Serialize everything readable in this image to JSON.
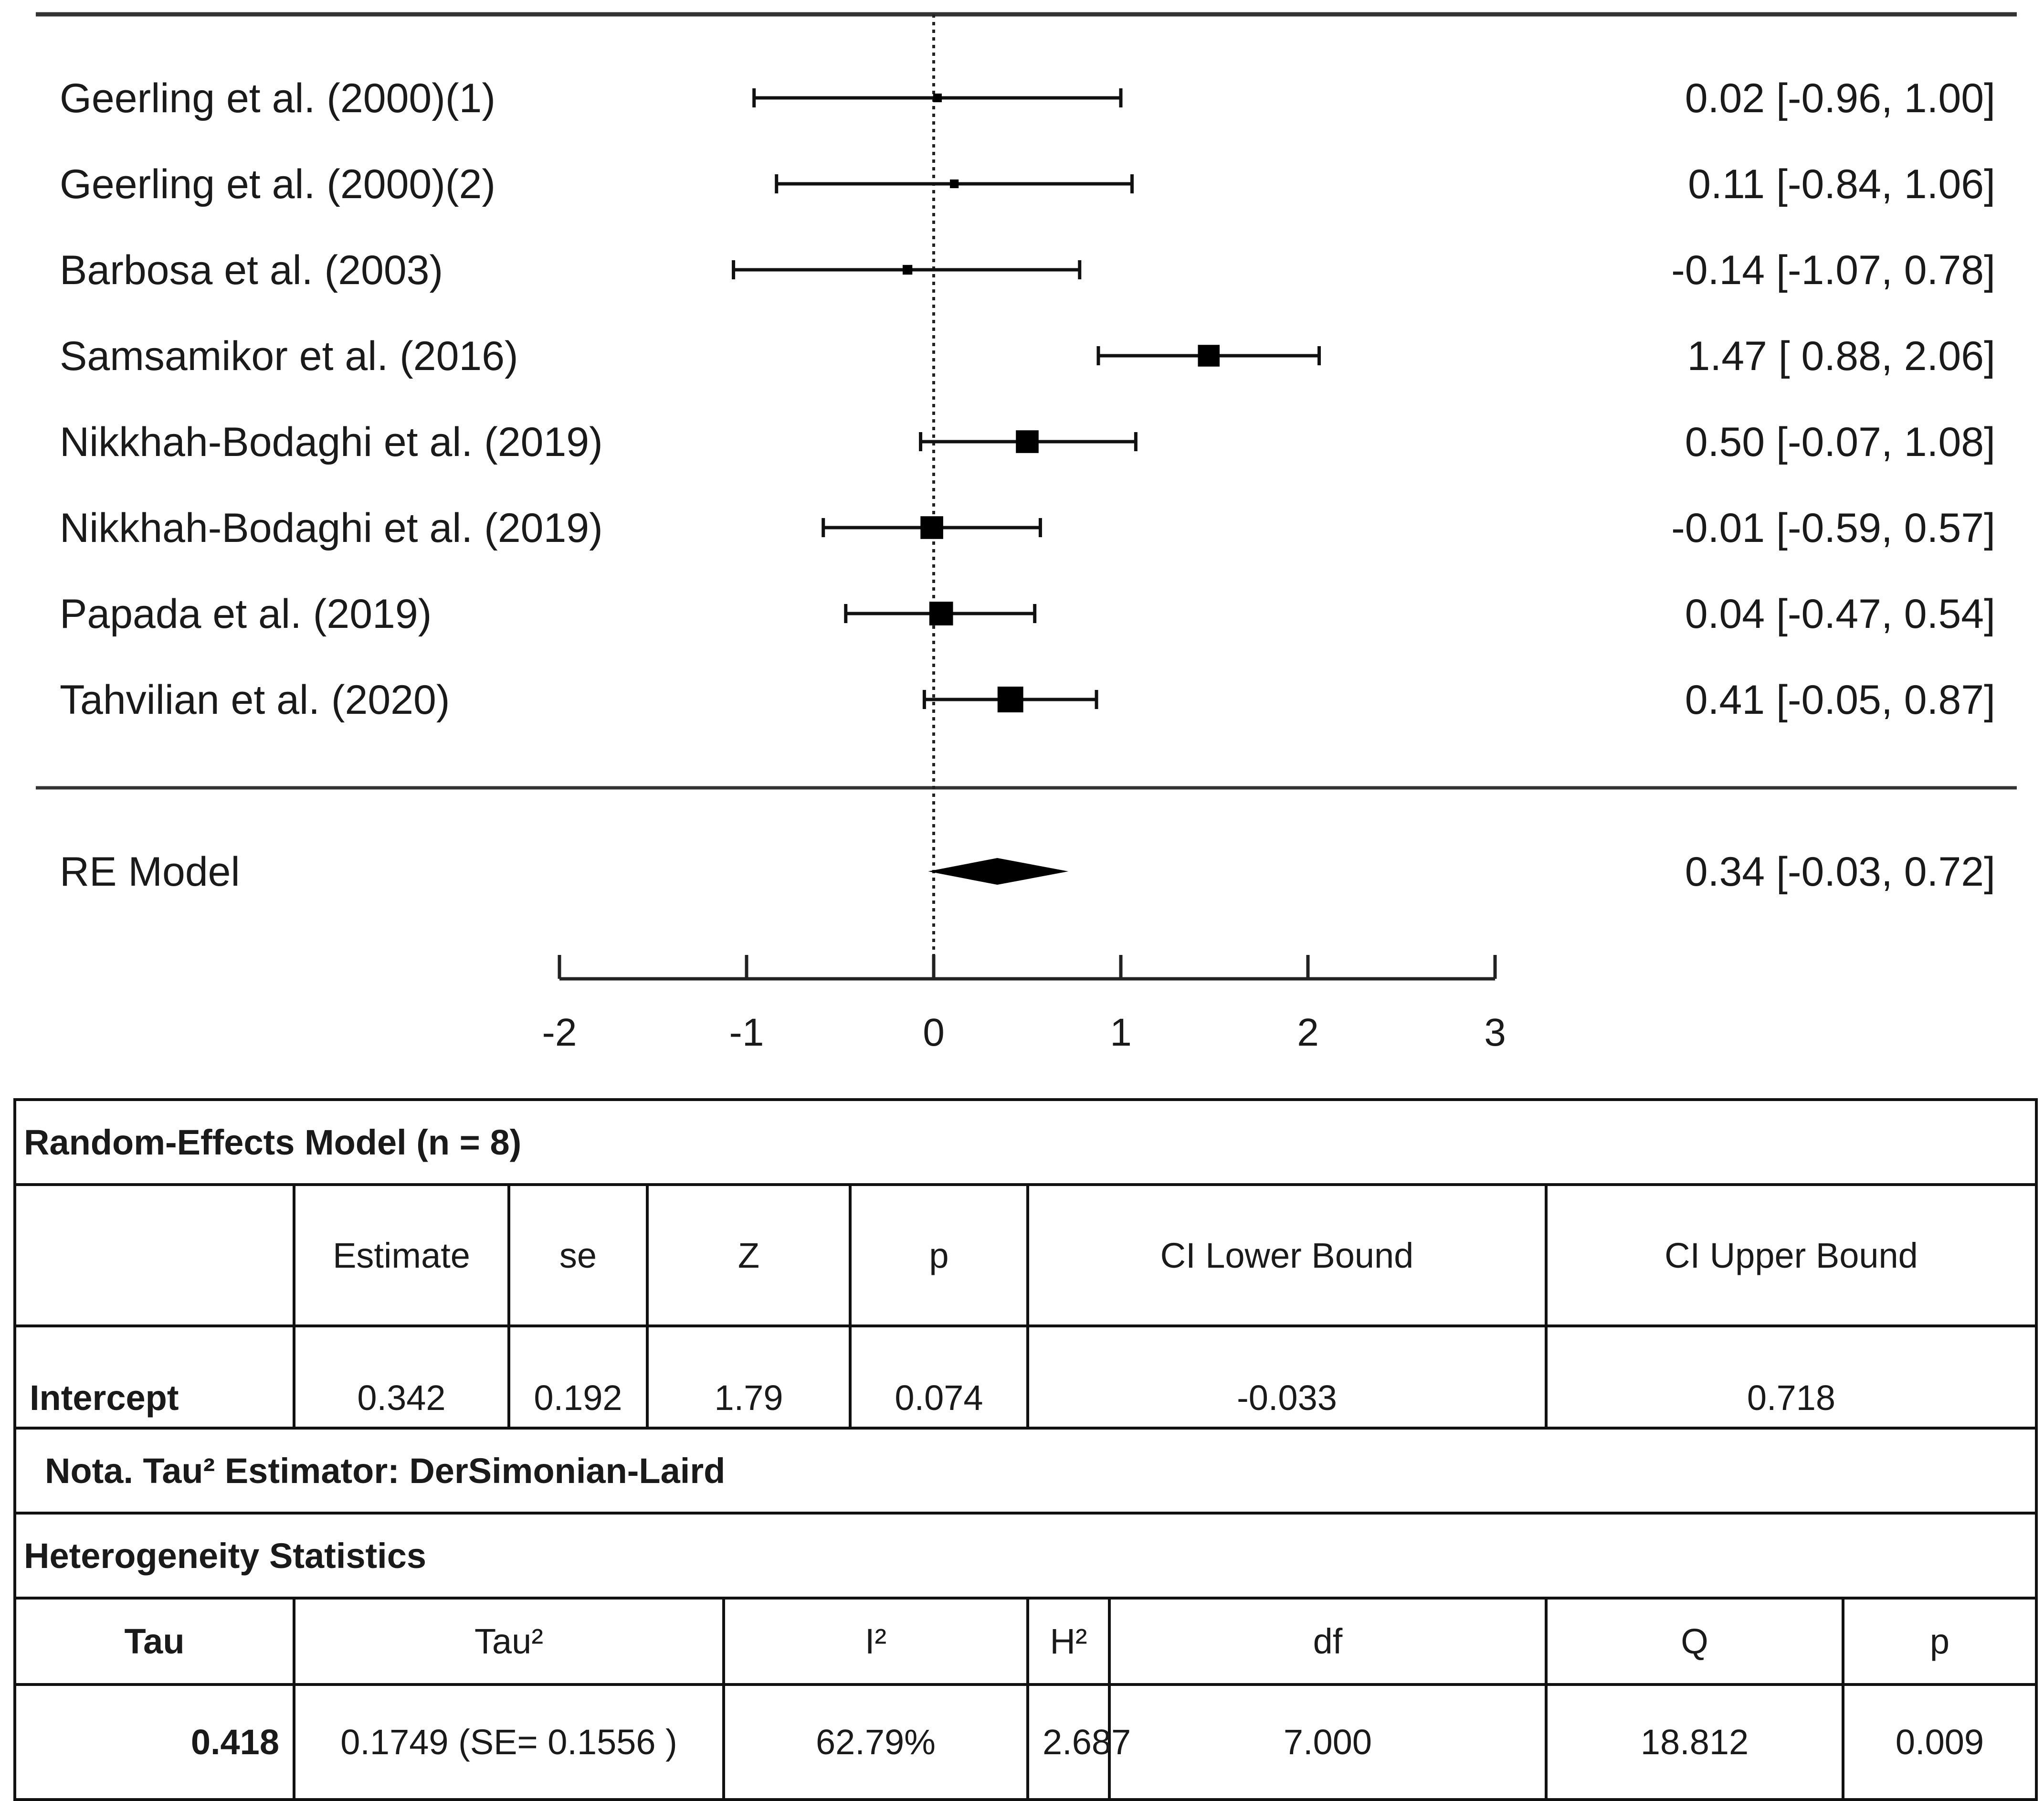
{
  "chart_data": {
    "type": "forest",
    "xlim": [
      -2,
      3
    ],
    "xticks": [
      "-2",
      "-1",
      "0",
      "1",
      "2",
      "3"
    ],
    "reference_line": 0,
    "studies": [
      {
        "name": "Geerling et al. (2000)(1)",
        "estimate": 0.02,
        "lower": -0.96,
        "upper": 1.0,
        "label": "0.02 [-0.96, 1.00]",
        "weight": 0.1
      },
      {
        "name": "Geerling et al. (2000)(2)",
        "estimate": 0.11,
        "lower": -0.84,
        "upper": 1.06,
        "label": "0.11 [-0.84, 1.06]",
        "weight": 0.1
      },
      {
        "name": "Barbosa et al. (2003)",
        "estimate": -0.14,
        "lower": -1.07,
        "upper": 0.78,
        "label": "-0.14 [-1.07, 0.78]",
        "weight": 0.15
      },
      {
        "name": "Samsamikor et al. (2016)",
        "estimate": 1.47,
        "lower": 0.88,
        "upper": 2.06,
        "label": "1.47 [ 0.88, 2.06]",
        "weight": 0.75
      },
      {
        "name": "Nikkhah-Bodaghi et al. (2019)",
        "estimate": 0.5,
        "lower": -0.07,
        "upper": 1.08,
        "label": "0.50 [-0.07, 1.08]",
        "weight": 0.8
      },
      {
        "name": "Nikkhah-Bodaghi et al. (2019)",
        "estimate": -0.01,
        "lower": -0.59,
        "upper": 0.57,
        "label": "-0.01 [-0.59, 0.57]",
        "weight": 0.8
      },
      {
        "name": "Papada et al. (2019)",
        "estimate": 0.04,
        "lower": -0.47,
        "upper": 0.54,
        "label": "0.04 [-0.47, 0.54]",
        "weight": 0.85
      },
      {
        "name": "Tahvilian  et al. (2020)",
        "estimate": 0.41,
        "lower": -0.05,
        "upper": 0.87,
        "label": "0.41 [-0.05, 0.87]",
        "weight": 0.95
      }
    ],
    "summary": {
      "name": "RE Model",
      "estimate": 0.34,
      "lower": -0.03,
      "upper": 0.72,
      "label": "0.34 [-0.03, 0.72]"
    }
  },
  "table": {
    "title": "Random-Effects Model (n = 8)",
    "headers": [
      "Estimate",
      "se",
      "Z",
      "p",
      "CI Lower Bound",
      "CI Upper Bound"
    ],
    "intercept": {
      "label": "Intercept",
      "values": [
        "0.342",
        "0.192",
        "1.79",
        "0.074",
        "-0.033",
        "0.718"
      ]
    },
    "note": "Nota. Tau² Estimator: DerSimonian-Laird",
    "het_title": "Heterogeneity Statistics",
    "het_headers": [
      "Tau",
      "Tau²",
      "I²",
      "H²",
      "df",
      "Q",
      "p"
    ],
    "het_values": [
      "0.418",
      "0.1749 (SE= 0.1556 )",
      "62.79%",
      "2.687",
      "7.000",
      "18.812",
      "0.009"
    ]
  }
}
